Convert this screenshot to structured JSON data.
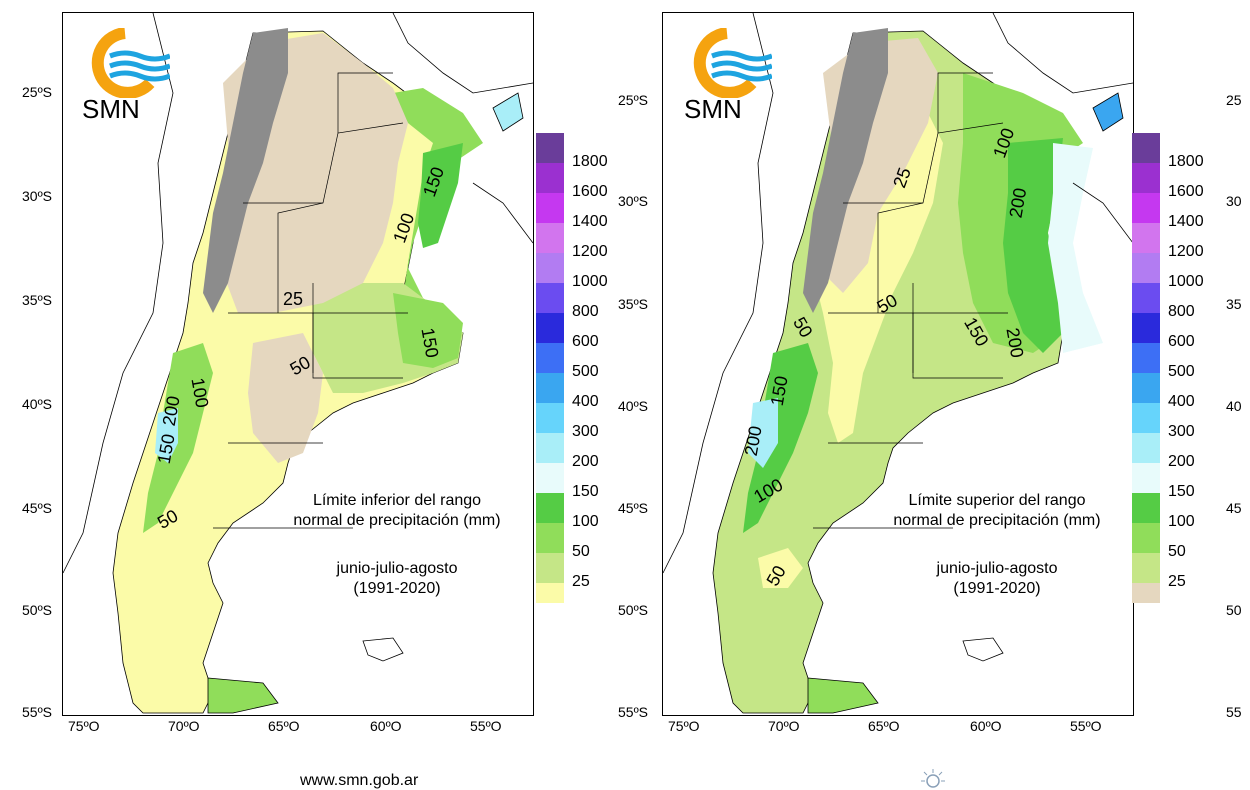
{
  "panels": [
    {
      "title_line1": "Límite inferior del rango",
      "title_line2": "normal de precipitación (mm)",
      "period_line1": "junio-julio-agosto",
      "period_line2": "(1991-2020)",
      "logo_text": "SMN",
      "lat_labels": [
        "25ºS",
        "30ºS",
        "35ºS",
        "40ºS",
        "45ºS",
        "50ºS",
        "55ºS"
      ],
      "lon_labels": [
        "75ºO",
        "70ºO",
        "65ºO",
        "60ºO",
        "55ºO"
      ],
      "legend": [
        {
          "label": "1800",
          "color": "#6a3d9a"
        },
        {
          "label": "1600",
          "color": "#9b30d0"
        },
        {
          "label": "1400",
          "color": "#c538f0"
        },
        {
          "label": "1200",
          "color": "#d275ee"
        },
        {
          "label": "1000",
          "color": "#b27cf2"
        },
        {
          "label": "800",
          "color": "#6b4cf0"
        },
        {
          "label": "600",
          "color": "#2a2adc"
        },
        {
          "label": "500",
          "color": "#3d6ff5"
        },
        {
          "label": "400",
          "color": "#3aa6f0"
        },
        {
          "label": "300",
          "color": "#66d4fb"
        },
        {
          "label": "200",
          "color": "#a9eef8"
        },
        {
          "label": "150",
          "color": "#e8fbfb"
        },
        {
          "label": "100",
          "color": "#55cc45"
        },
        {
          "label": "50",
          "color": "#90dd5a"
        },
        {
          "label": "25",
          "color": "#c5e687"
        }
      ],
      "legend_extra": [
        {
          "label": "",
          "color": "#fbfba8"
        },
        {
          "label": "",
          "color": "#e5d7bf"
        }
      ],
      "contour_labels": [
        "150",
        "100",
        "25",
        "150",
        "50",
        "100",
        "200",
        "150",
        "50"
      ]
    },
    {
      "title_line1": "Límite superior del rango",
      "title_line2": "normal de precipitación (mm)",
      "period_line1": "junio-julio-agosto",
      "period_line2": "(1991-2020)",
      "logo_text": "SMN",
      "lat_labels": [
        "25ºS",
        "30ºS",
        "35ºS",
        "40ºS",
        "45ºS",
        "50ºS",
        "55ºS"
      ],
      "lon_labels": [
        "75ºO",
        "70ºO",
        "65ºO",
        "60ºO",
        "55ºO"
      ],
      "legend": [
        {
          "label": "1800",
          "color": "#6a3d9a"
        },
        {
          "label": "1600",
          "color": "#9b30d0"
        },
        {
          "label": "1400",
          "color": "#c538f0"
        },
        {
          "label": "1200",
          "color": "#d275ee"
        },
        {
          "label": "1000",
          "color": "#b27cf2"
        },
        {
          "label": "800",
          "color": "#6b4cf0"
        },
        {
          "label": "600",
          "color": "#2a2adc"
        },
        {
          "label": "500",
          "color": "#3d6ff5"
        },
        {
          "label": "400",
          "color": "#3aa6f0"
        },
        {
          "label": "300",
          "color": "#66d4fb"
        },
        {
          "label": "200",
          "color": "#a9eef8"
        },
        {
          "label": "150",
          "color": "#e8fbfb"
        },
        {
          "label": "100",
          "color": "#55cc45"
        },
        {
          "label": "50",
          "color": "#90dd5a"
        },
        {
          "label": "25",
          "color": "#c5e687"
        }
      ],
      "legend_extra": [
        {
          "label": "",
          "color": "#fbfba8"
        },
        {
          "label": "",
          "color": "#e5d7bf"
        }
      ],
      "contour_labels": [
        "100",
        "25",
        "200",
        "50",
        "50",
        "150",
        "200",
        "150",
        "200",
        "100",
        "50"
      ]
    }
  ],
  "right_edge_labels": [
    "25",
    "30",
    "35",
    "40",
    "45",
    "50",
    "55"
  ],
  "footer_text": "www.smn.gob.ar",
  "colors": {
    "grey_terrain": "#8c8c8c",
    "beige": "#e5d7bf",
    "yellow": "#fbfba8",
    "lightgreen": "#c5e687",
    "green": "#90dd5a",
    "darkgreen": "#55cc45",
    "cyan": "#a9eef8",
    "logo_orange": "#f5a30f",
    "logo_blue": "#1ea4e0"
  }
}
